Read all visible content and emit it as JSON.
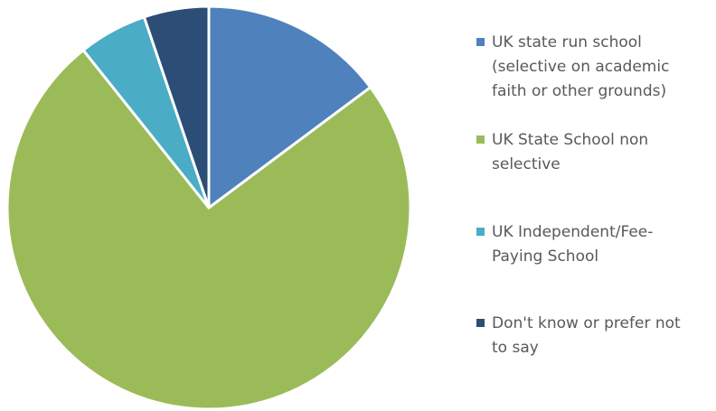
{
  "chart_data": {
    "type": "pie",
    "title": "",
    "series": [
      {
        "categories": [
          "UK state run school (selective on academic faith or other grounds)",
          "UK State School non selective",
          "UK Independent/Fee-Paying School",
          "Don't know or prefer not to say"
        ],
        "values": [
          14.8,
          74.5,
          5.5,
          5.2
        ],
        "colors": [
          "#4F81BD",
          "#9BBB59",
          "#4BACC6",
          "#2C4D75"
        ]
      }
    ],
    "start_angle_deg": 0,
    "direction": "clockwise",
    "legend_position": "right"
  },
  "legend": {
    "items": [
      {
        "label": "UK state run school\n(selective on academic\nfaith or other grounds)",
        "color": "#4F81BD"
      },
      {
        "label": "UK State School non\nselective",
        "color": "#9BBB59"
      },
      {
        "label": "UK Independent/Fee-\nPaying School",
        "color": "#4BACC6"
      },
      {
        "label": "Don't know or prefer not\nto say",
        "color": "#2C4D75"
      }
    ]
  }
}
